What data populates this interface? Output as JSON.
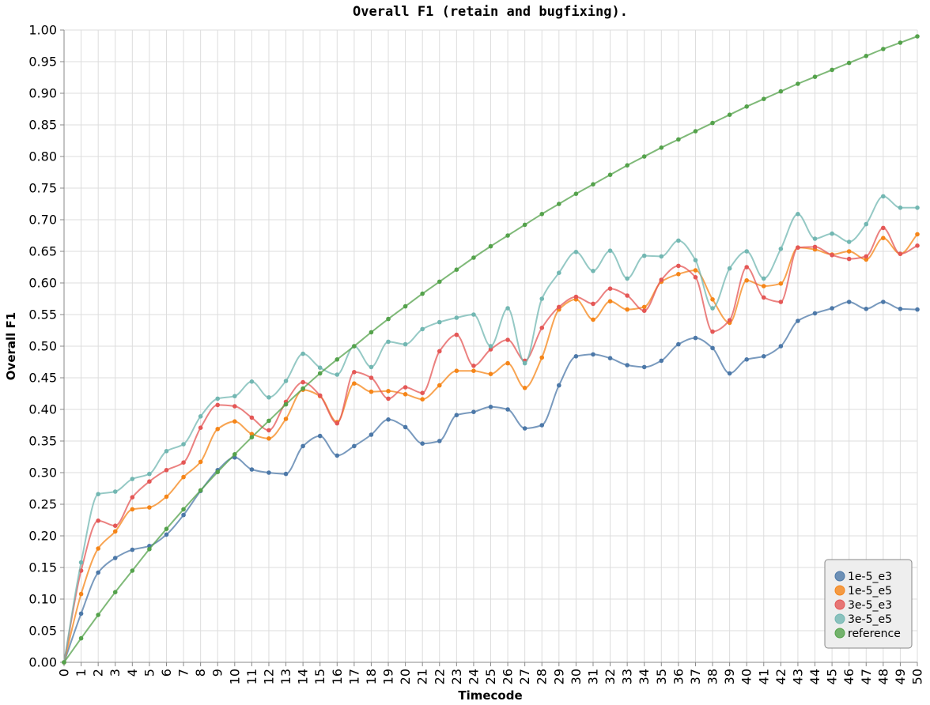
{
  "chart_data": {
    "type": "line",
    "title": "Overall F1 (retain and bugfixing).",
    "xlabel": "Timecode",
    "ylabel": "Overall F1",
    "x": [
      0,
      1,
      2,
      3,
      4,
      5,
      6,
      7,
      8,
      9,
      10,
      11,
      12,
      13,
      14,
      15,
      16,
      17,
      18,
      19,
      20,
      21,
      22,
      23,
      24,
      25,
      26,
      27,
      28,
      29,
      30,
      31,
      32,
      33,
      34,
      35,
      36,
      37,
      38,
      39,
      40,
      41,
      42,
      43,
      44,
      45,
      46,
      47,
      48,
      49,
      50
    ],
    "xlim": [
      0,
      50
    ],
    "ylim": [
      0,
      1
    ],
    "yticks": [
      "0.00",
      "0.05",
      "0.10",
      "0.15",
      "0.20",
      "0.25",
      "0.30",
      "0.35",
      "0.40",
      "0.45",
      "0.50",
      "0.55",
      "0.60",
      "0.65",
      "0.70",
      "0.75",
      "0.80",
      "0.85",
      "0.90",
      "0.95",
      "1.00"
    ],
    "grid": true,
    "legend_position": "bottom-right",
    "series": [
      {
        "name": "1e-5_e3",
        "color": "#4c78a8",
        "values": [
          0.0,
          0.077,
          0.142,
          0.165,
          0.178,
          0.184,
          0.202,
          0.233,
          0.271,
          0.304,
          0.324,
          0.305,
          0.3,
          0.298,
          0.342,
          0.358,
          0.327,
          0.342,
          0.36,
          0.384,
          0.372,
          0.346,
          0.35,
          0.391,
          0.396,
          0.404,
          0.4,
          0.37,
          0.375,
          0.438,
          0.484,
          0.487,
          0.481,
          0.47,
          0.467,
          0.477,
          0.503,
          0.513,
          0.497,
          0.457,
          0.479,
          0.484,
          0.5,
          0.54,
          0.552,
          0.56,
          0.57,
          0.559,
          0.57,
          0.559,
          0.558
        ]
      },
      {
        "name": "1e-5_e5",
        "color": "#f58518",
        "values": [
          0.0,
          0.108,
          0.18,
          0.207,
          0.242,
          0.245,
          0.262,
          0.293,
          0.317,
          0.369,
          0.381,
          0.361,
          0.354,
          0.385,
          0.431,
          0.421,
          0.38,
          0.441,
          0.428,
          0.429,
          0.424,
          0.416,
          0.438,
          0.461,
          0.461,
          0.456,
          0.473,
          0.434,
          0.482,
          0.558,
          0.574,
          0.542,
          0.571,
          0.558,
          0.562,
          0.602,
          0.614,
          0.62,
          0.574,
          0.537,
          0.604,
          0.595,
          0.599,
          0.656,
          0.653,
          0.645,
          0.65,
          0.637,
          0.671,
          0.646,
          0.677
        ]
      },
      {
        "name": "3e-5_e3",
        "color": "#e45756",
        "values": [
          0.0,
          0.145,
          0.224,
          0.216,
          0.261,
          0.286,
          0.304,
          0.316,
          0.371,
          0.407,
          0.405,
          0.387,
          0.367,
          0.412,
          0.443,
          0.422,
          0.378,
          0.459,
          0.45,
          0.417,
          0.435,
          0.426,
          0.492,
          0.518,
          0.469,
          0.495,
          0.51,
          0.477,
          0.529,
          0.562,
          0.578,
          0.567,
          0.591,
          0.58,
          0.556,
          0.605,
          0.627,
          0.609,
          0.523,
          0.541,
          0.625,
          0.577,
          0.57,
          0.656,
          0.657,
          0.644,
          0.638,
          0.642,
          0.687,
          0.646,
          0.659
        ]
      },
      {
        "name": "3e-5_e5",
        "color": "#72b7b2",
        "values": [
          0.0,
          0.158,
          0.266,
          0.27,
          0.29,
          0.298,
          0.334,
          0.345,
          0.389,
          0.417,
          0.421,
          0.444,
          0.419,
          0.445,
          0.488,
          0.466,
          0.455,
          0.5,
          0.467,
          0.507,
          0.503,
          0.527,
          0.538,
          0.545,
          0.55,
          0.5,
          0.56,
          0.473,
          0.575,
          0.616,
          0.649,
          0.619,
          0.651,
          0.607,
          0.643,
          0.642,
          0.667,
          0.636,
          0.56,
          0.623,
          0.65,
          0.607,
          0.654,
          0.709,
          0.67,
          0.678,
          0.665,
          0.693,
          0.737,
          0.719,
          0.719
        ]
      },
      {
        "name": "reference",
        "color": "#54a24b",
        "values": [
          0.0,
          0.038,
          0.075,
          0.111,
          0.145,
          0.179,
          0.211,
          0.242,
          0.272,
          0.301,
          0.329,
          0.356,
          0.382,
          0.408,
          0.433,
          0.457,
          0.479,
          0.5,
          0.522,
          0.543,
          0.563,
          0.583,
          0.602,
          0.621,
          0.64,
          0.658,
          0.675,
          0.692,
          0.709,
          0.725,
          0.741,
          0.756,
          0.771,
          0.786,
          0.8,
          0.814,
          0.827,
          0.84,
          0.853,
          0.866,
          0.879,
          0.891,
          0.903,
          0.915,
          0.926,
          0.937,
          0.948,
          0.959,
          0.97,
          0.98,
          0.99
        ]
      }
    ]
  }
}
